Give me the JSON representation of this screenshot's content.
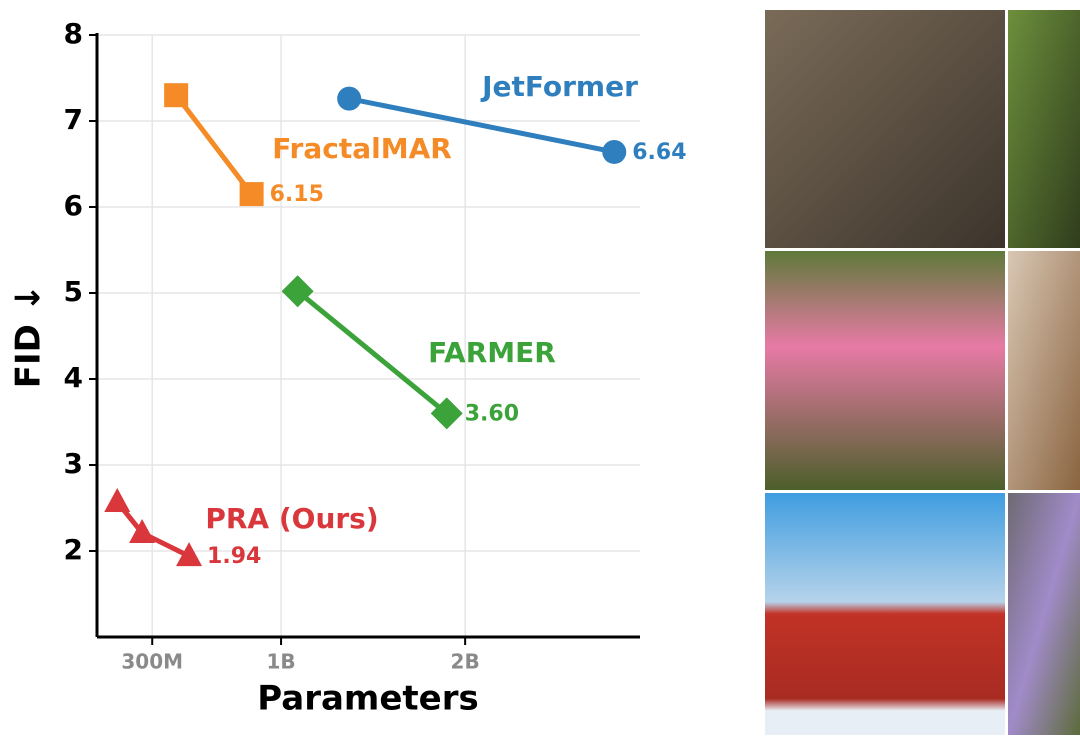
{
  "chart_data": {
    "type": "line",
    "x_label": "Parameters",
    "y_label": "FID ↓",
    "xlim": [
      0,
      2950000000
    ],
    "ylim": [
      1,
      8
    ],
    "xticks": [
      {
        "value": 300000000,
        "label": "300M"
      },
      {
        "value": 1000000000,
        "label": "1B"
      },
      {
        "value": 2000000000,
        "label": "2B"
      }
    ],
    "yticks": [
      2,
      3,
      4,
      5,
      6,
      7,
      8
    ],
    "grid": true,
    "series": [
      {
        "name": "PRA (Ours)",
        "color": "#d9373b",
        "marker": "triangle",
        "x": [
          110000000,
          245000000,
          500000000
        ],
        "values": [
          2.57,
          2.21,
          1.94
        ],
        "value_labels": [
          null,
          null,
          "1.94"
        ]
      },
      {
        "name": "FractalMAR",
        "color": "#f58b27",
        "marker": "square",
        "x": [
          430000000,
          840000000
        ],
        "values": [
          7.3,
          6.15
        ],
        "value_labels": [
          null,
          "6.15"
        ]
      },
      {
        "name": "FARMER",
        "color": "#3ba33a",
        "marker": "diamond",
        "x": [
          1090000000,
          1900000000
        ],
        "values": [
          5.02,
          3.6
        ],
        "value_labels": [
          null,
          "3.60"
        ]
      },
      {
        "name": "JetFormer",
        "color": "#2f7fbf",
        "marker": "circle",
        "x": [
          1370000000,
          2810000000
        ],
        "values": [
          7.26,
          6.64
        ],
        "value_labels": [
          null,
          "6.64"
        ]
      }
    ]
  }
}
